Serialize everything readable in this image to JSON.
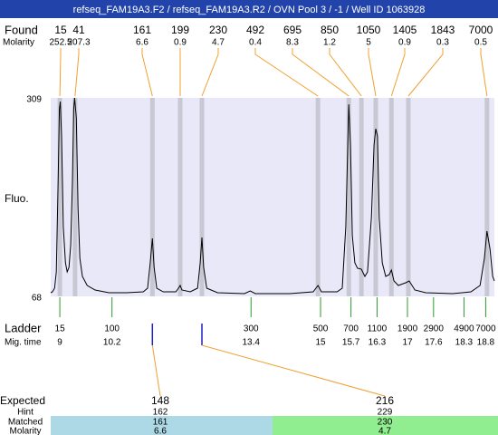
{
  "header": {
    "title": "refseq_FAM19A3.F2 / refseq_FAM19A3.R2 / OVN Pool 3 / -1 / Well ID 1063928"
  },
  "found": {
    "label": "Found",
    "molarity_label": "Molarity",
    "peaks": [
      {
        "size": 15,
        "molarity": 252.5,
        "time": 9.0
      },
      {
        "size": 41,
        "molarity": 207.3,
        "time": 9.35
      },
      {
        "size": 161,
        "molarity": 6.6,
        "time": 11.13
      },
      {
        "size": 199,
        "molarity": 0.9,
        "time": 11.77
      },
      {
        "size": 230,
        "molarity": 4.7,
        "time": 12.27
      },
      {
        "size": 492,
        "molarity": 0.4,
        "time": 14.94
      },
      {
        "size": 695,
        "molarity": 8.3,
        "time": 15.65
      },
      {
        "size": 850,
        "molarity": 1.2,
        "time": 15.94
      },
      {
        "size": 1050,
        "molarity": 5,
        "time": 16.27
      },
      {
        "size": 1405,
        "molarity": 0.9,
        "time": 16.63
      },
      {
        "size": 1843,
        "molarity": 0.3,
        "time": 17.02
      },
      {
        "size": 7000,
        "molarity": 0.5,
        "time": 18.83
      }
    ]
  },
  "trace": {
    "label": "Fluo.",
    "xlim": [
      8.79,
      19.0
    ],
    "ylim": [
      68,
      309
    ],
    "yticks": [
      68,
      309
    ],
    "x": [
      8.79,
      8.83,
      8.88,
      8.92,
      8.96,
      8.99,
      9.01,
      9.04,
      9.08,
      9.13,
      9.17,
      9.21,
      9.25,
      9.29,
      9.32,
      9.34,
      9.38,
      9.42,
      9.46,
      9.52,
      9.63,
      9.81,
      10.13,
      10.54,
      10.92,
      11.02,
      11.08,
      11.13,
      11.17,
      11.23,
      11.38,
      11.67,
      11.73,
      11.77,
      11.81,
      12.0,
      12.17,
      12.23,
      12.27,
      12.31,
      12.38,
      12.63,
      13.25,
      13.38,
      13.5,
      14.29,
      14.83,
      14.94,
      15.02,
      15.38,
      15.5,
      15.58,
      15.65,
      15.69,
      15.73,
      15.79,
      15.85,
      15.94,
      16.02,
      16.08,
      16.17,
      16.23,
      16.27,
      16.31,
      16.35,
      16.42,
      16.5,
      16.58,
      16.63,
      16.69,
      16.79,
      16.96,
      17.04,
      17.17,
      17.42,
      18.04,
      18.46,
      18.67,
      18.77,
      18.83,
      18.9,
      18.96,
      19.0
    ],
    "values": [
      72.4,
      73.5,
      77.9,
      97.7,
      207.7,
      295.7,
      304.5,
      262.7,
      152.7,
      108.7,
      97.7,
      103.2,
      130.7,
      207.7,
      295.7,
      308.9,
      284.7,
      174.7,
      114.2,
      92.2,
      81.2,
      75.7,
      72.4,
      72.4,
      73.5,
      77.9,
      108.7,
      138.4,
      103.2,
      77.9,
      73.5,
      73.5,
      77.9,
      81.2,
      75.7,
      73.5,
      77.9,
      108.7,
      139.5,
      103.2,
      77.9,
      72.4,
      71.3,
      74.6,
      71.3,
      71.3,
      73.5,
      81.2,
      73.5,
      73.5,
      77.9,
      152.7,
      301.2,
      251.7,
      141.7,
      108.7,
      102.1,
      101,
      92.2,
      97.7,
      163.7,
      251.7,
      271.5,
      262.7,
      163.7,
      108.7,
      92.2,
      94.4,
      99.9,
      86.7,
      81.2,
      84.5,
      86.7,
      75.7,
      72.4,
      71.3,
      73.5,
      81.2,
      114.2,
      147.2,
      125.2,
      92.2,
      86.7
    ]
  },
  "ladder": {
    "label": "Ladder",
    "time_label": "Mig. time",
    "sizes": [
      15,
      100,
      300,
      500,
      700,
      1100,
      1900,
      2900,
      4900,
      7000
    ],
    "times": [
      9,
      10.2,
      13.4,
      15,
      15.7,
      16.3,
      17,
      17.6,
      18.3,
      18.8
    ]
  },
  "expected": {
    "label": "Expected",
    "hint_label": "Hint",
    "matched_label": "Matched",
    "molarity_label": "Molarity",
    "columns": [
      {
        "expected": 148,
        "hint": 162,
        "matched": 161,
        "molarity": 6.6,
        "color": "#add8e6"
      },
      {
        "expected": 216,
        "hint": 229,
        "matched": 230,
        "molarity": 4.7,
        "color": "#90ee90"
      }
    ]
  }
}
